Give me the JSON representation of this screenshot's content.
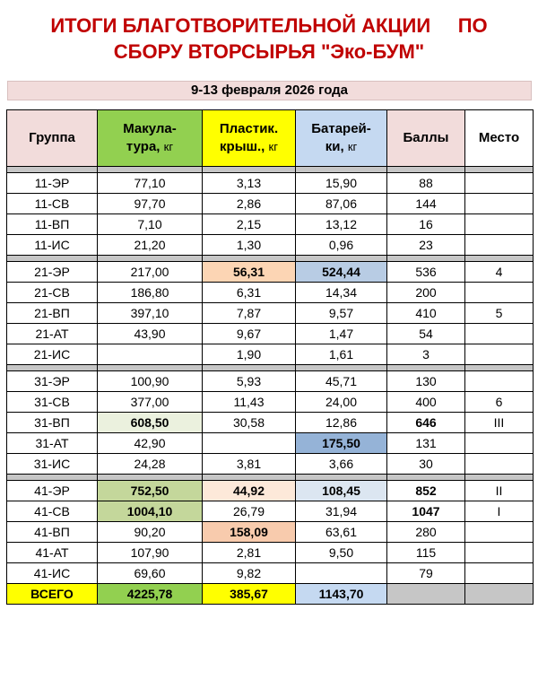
{
  "title": {
    "line1": "ИТОГИ БЛАГОТВОРИТЕЛЬНОЙ АКЦИИ     ПО",
    "line2": "СБОРУ ВТОРСЫРЬЯ \"Эко-БУМ\""
  },
  "subtitle": "9-13 февраля 2026 года",
  "headers": {
    "group": "Группа",
    "paper_1": "Макула-",
    "paper_2": "тура,",
    "paper_unit": "кг",
    "plastic_1": "Пластик.",
    "plastic_2": "крыш.,",
    "plastic_unit": "кг",
    "battery_1": "Батарей-",
    "battery_2": "ки,",
    "battery_unit": "кг",
    "points": "Баллы",
    "place": "Место"
  },
  "colors": {
    "title": "#c00000",
    "paper_header": "#92d050",
    "plastic_header": "#ffff00",
    "battery_header": "#c5d9f1",
    "points_header": "#f2dcdb",
    "separator": "#c6c6c6"
  },
  "rows": [
    {
      "group": "11-ЭР",
      "paper": "77,10",
      "plastic": "3,13",
      "battery": "15,90",
      "points": "88",
      "place": ""
    },
    {
      "group": "11-СВ",
      "paper": "97,70",
      "plastic": "2,86",
      "battery": "87,06",
      "points": "144",
      "place": ""
    },
    {
      "group": "11-ВП",
      "paper": "7,10",
      "plastic": "2,15",
      "battery": "13,12",
      "points": "16",
      "place": ""
    },
    {
      "group": "11-ИС",
      "paper": "21,20",
      "plastic": "1,30",
      "battery": "0,96",
      "points": "23",
      "place": ""
    },
    {
      "group": "21-ЭР",
      "paper": "217,00",
      "plastic": "56,31",
      "battery": "524,44",
      "points": "536",
      "place": "4"
    },
    {
      "group": "21-СВ",
      "paper": "186,80",
      "plastic": "6,31",
      "battery": "14,34",
      "points": "200",
      "place": ""
    },
    {
      "group": "21-ВП",
      "paper": "397,10",
      "plastic": "7,87",
      "battery": "9,57",
      "points": "410",
      "place": "5"
    },
    {
      "group": "21-АТ",
      "paper": "43,90",
      "plastic": "9,67",
      "battery": "1,47",
      "points": "54",
      "place": ""
    },
    {
      "group": "21-ИС",
      "paper": "",
      "plastic": "1,90",
      "battery": "1,61",
      "points": "3",
      "place": ""
    },
    {
      "group": "31-ЭР",
      "paper": "100,90",
      "plastic": "5,93",
      "battery": "45,71",
      "points": "130",
      "place": ""
    },
    {
      "group": "31-СВ",
      "paper": "377,00",
      "plastic": "11,43",
      "battery": "24,00",
      "points": "400",
      "place": "6"
    },
    {
      "group": "31-ВП",
      "paper": "608,50",
      "plastic": "30,58",
      "battery": "12,86",
      "points": "646",
      "place": "III"
    },
    {
      "group": "31-АТ",
      "paper": "42,90",
      "plastic": "",
      "battery": "175,50",
      "points": "131",
      "place": ""
    },
    {
      "group": "31-ИС",
      "paper": "24,28",
      "plastic": "3,81",
      "battery": "3,66",
      "points": "30",
      "place": ""
    },
    {
      "group": "41-ЭР",
      "paper": "752,50",
      "plastic": "44,92",
      "battery": "108,45",
      "points": "852",
      "place": "II"
    },
    {
      "group": "41-СВ",
      "paper": "1004,10",
      "plastic": "26,79",
      "battery": "31,94",
      "points": "1047",
      "place": "I"
    },
    {
      "group": "41-ВП",
      "paper": "90,20",
      "plastic": "158,09",
      "battery": "63,61",
      "points": "280",
      "place": ""
    },
    {
      "group": "41-АТ",
      "paper": "107,90",
      "plastic": "2,81",
      "battery": "9,50",
      "points": "115",
      "place": ""
    },
    {
      "group": "41-ИС",
      "paper": "69,60",
      "plastic": "9,82",
      "battery": "",
      "points": "79",
      "place": ""
    }
  ],
  "total": {
    "label": "ВСЕГО",
    "paper": "4225,78",
    "plastic": "385,67",
    "battery": "1143,70"
  }
}
